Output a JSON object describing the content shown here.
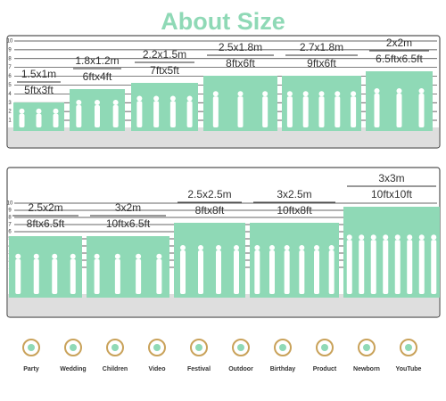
{
  "title": "About Size",
  "scale": [
    "1",
    "2",
    "3",
    "4",
    "5",
    "6",
    "7",
    "8",
    "9",
    "10"
  ],
  "panels": [
    {
      "sizes": [
        {
          "metric": "1.5x1m",
          "imperial": "5ftx3ft"
        },
        {
          "metric": "1.8x1.2m",
          "imperial": "6ftx4ft"
        },
        {
          "metric": "2.2x1.5m",
          "imperial": "7ftx5ft"
        },
        {
          "metric": "2.5x1.8m",
          "imperial": "8ftx6ft"
        },
        {
          "metric": "2.7x1.8m",
          "imperial": "9ftx6ft"
        },
        {
          "metric": "2x2m",
          "imperial": "6.5ftx6.5ft"
        }
      ]
    },
    {
      "sizes": [
        {
          "metric": "2.5x2m",
          "imperial": "8ftx6.5ft"
        },
        {
          "metric": "3x2m",
          "imperial": "10ftx6.5ft"
        },
        {
          "metric": "2.5x2.5m",
          "imperial": "8ftx8ft"
        },
        {
          "metric": "3x2.5m",
          "imperial": "10ftx8ft"
        },
        {
          "metric": "3x3m",
          "imperial": "10ftx10ft"
        }
      ]
    }
  ],
  "uses": [
    "Party",
    "Wedding",
    "Children",
    "Video",
    "Festival",
    "Outdoor",
    "Birthday",
    "Product",
    "Newborn",
    "YouTube"
  ]
}
